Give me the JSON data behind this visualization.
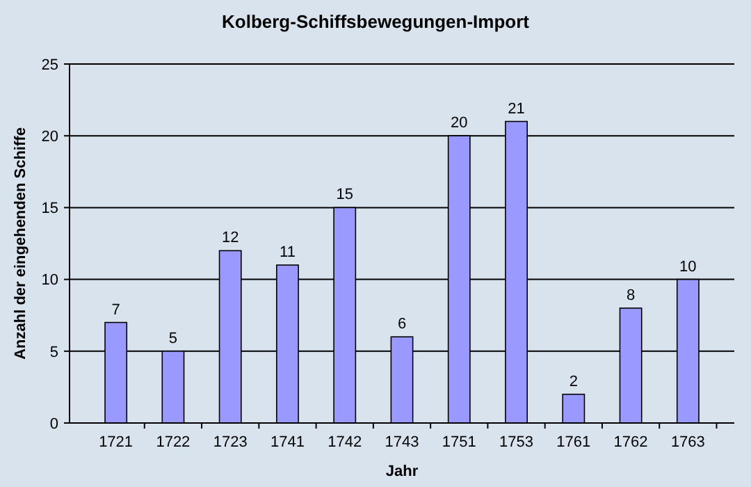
{
  "chart_data": {
    "type": "bar",
    "title": "Kolberg-Schiffsbewegungen-Import",
    "xlabel": "Jahr",
    "ylabel": "Anzahl der eingehenden Schiffe",
    "categories": [
      "1721",
      "1722",
      "1723",
      "1741",
      "1742",
      "1743",
      "1751",
      "1753",
      "1761",
      "1762",
      "1763"
    ],
    "values": [
      7,
      5,
      12,
      11,
      15,
      6,
      20,
      21,
      2,
      8,
      10
    ],
    "color": "#9999ff",
    "ylim": [
      0,
      25
    ],
    "yticks": [
      0,
      5,
      10,
      15,
      20,
      25
    ],
    "grid": "y",
    "data_labels": true
  }
}
